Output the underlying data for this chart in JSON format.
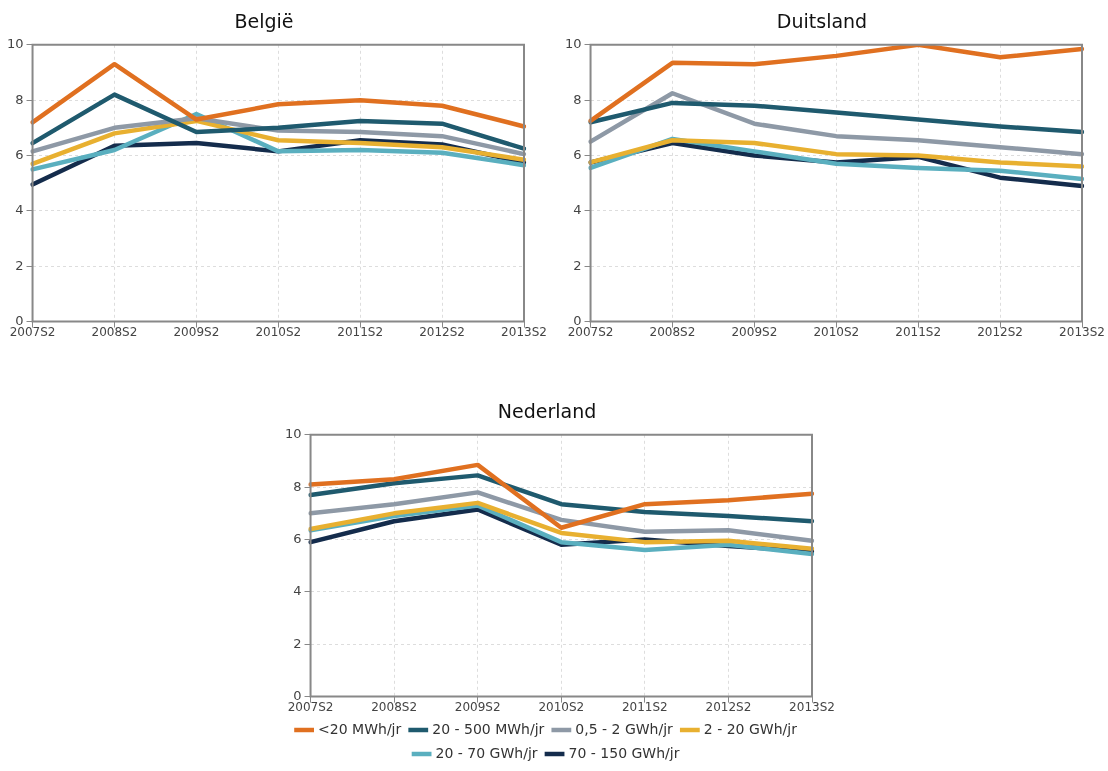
{
  "chart_data": [
    {
      "type": "line",
      "title": "België",
      "categories": [
        "2007S2",
        "2008S2",
        "2009S2",
        "2010S2",
        "2011S2",
        "2012S2",
        "2013S2"
      ],
      "ylim": [
        0,
        10
      ],
      "yticks": [
        0,
        2,
        4,
        6,
        8,
        10
      ],
      "grid": true,
      "legend": false,
      "series": [
        {
          "color": "#e07020",
          "values": [
            7.2,
            9.3,
            7.3,
            7.85,
            8.0,
            7.8,
            7.05
          ]
        },
        {
          "color": "#1f5a6e",
          "values": [
            6.45,
            8.2,
            6.85,
            7.0,
            7.25,
            7.15,
            6.25
          ]
        },
        {
          "color": "#8e99a6",
          "values": [
            6.15,
            7.0,
            7.35,
            6.9,
            6.85,
            6.7,
            6.05
          ]
        },
        {
          "color": "#e8b030",
          "values": [
            5.7,
            6.8,
            7.25,
            6.55,
            6.45,
            6.3,
            5.85
          ]
        },
        {
          "color": "#5aafbf",
          "values": [
            5.5,
            6.2,
            7.5,
            6.15,
            6.2,
            6.1,
            5.65
          ]
        },
        {
          "color": "#142c4c",
          "values": [
            4.95,
            6.35,
            6.45,
            6.15,
            6.55,
            6.4,
            5.75
          ]
        }
      ]
    },
    {
      "type": "line",
      "title": "Duitsland",
      "categories": [
        "2007S2",
        "2008S2",
        "2009S2",
        "2010S2",
        "2011S2",
        "2012S2",
        "2013S2"
      ],
      "ylim": [
        0,
        10
      ],
      "yticks": [
        0,
        2,
        4,
        6,
        8,
        10
      ],
      "grid": true,
      "legend": false,
      "series": [
        {
          "color": "#e07020",
          "values": [
            7.25,
            9.35,
            9.3,
            9.6,
            10.0,
            9.55,
            9.85
          ]
        },
        {
          "color": "#1f5a6e",
          "values": [
            7.2,
            7.9,
            7.8,
            7.55,
            7.3,
            7.05,
            6.85
          ]
        },
        {
          "color": "#8e99a6",
          "values": [
            6.5,
            8.25,
            7.15,
            6.7,
            6.55,
            6.3,
            6.05
          ]
        },
        {
          "color": "#e8b030",
          "values": [
            5.75,
            6.55,
            6.45,
            6.05,
            6.0,
            5.75,
            5.6
          ]
        },
        {
          "color": "#5aafbf",
          "values": [
            5.55,
            6.6,
            6.15,
            5.7,
            5.55,
            5.45,
            5.15
          ]
        },
        {
          "color": "#142c4c",
          "values": [
            5.75,
            6.45,
            6.0,
            5.75,
            5.95,
            5.2,
            4.9
          ]
        }
      ]
    },
    {
      "type": "line",
      "title": "Nederland",
      "categories": [
        "2007S2",
        "2008S2",
        "2009S2",
        "2010S2",
        "2011S2",
        "2012S2",
        "2013S2"
      ],
      "ylim": [
        0,
        10
      ],
      "yticks": [
        0,
        2,
        4,
        6,
        8,
        10
      ],
      "grid": true,
      "legend": "bottom",
      "series": [
        {
          "name": "<20 MWh/jr",
          "color": "#e07020",
          "values": [
            8.1,
            8.3,
            8.85,
            6.45,
            7.35,
            7.5,
            7.75
          ]
        },
        {
          "name": "20 - 500 MWh/jr",
          "color": "#1f5a6e",
          "values": [
            7.7,
            8.15,
            8.45,
            7.35,
            7.05,
            6.9,
            6.7
          ]
        },
        {
          "name": "0,5 - 2 GWh/jr",
          "color": "#8e99a6",
          "values": [
            7.0,
            7.35,
            7.8,
            6.75,
            6.3,
            6.35,
            5.95
          ]
        },
        {
          "name": "2 - 20 GWh/jr",
          "color": "#e8b030",
          "values": [
            6.4,
            7.0,
            7.4,
            6.25,
            5.9,
            5.95,
            5.65
          ]
        },
        {
          "name": "20 - 70 GWh/jr",
          "color": "#5aafbf",
          "values": [
            6.35,
            6.9,
            7.3,
            5.9,
            5.6,
            5.8,
            5.45
          ]
        },
        {
          "name": "70 - 150 GWh/jr",
          "color": "#142c4c",
          "values": [
            5.9,
            6.7,
            7.15,
            5.8,
            6.0,
            5.75,
            5.55
          ]
        }
      ]
    }
  ]
}
